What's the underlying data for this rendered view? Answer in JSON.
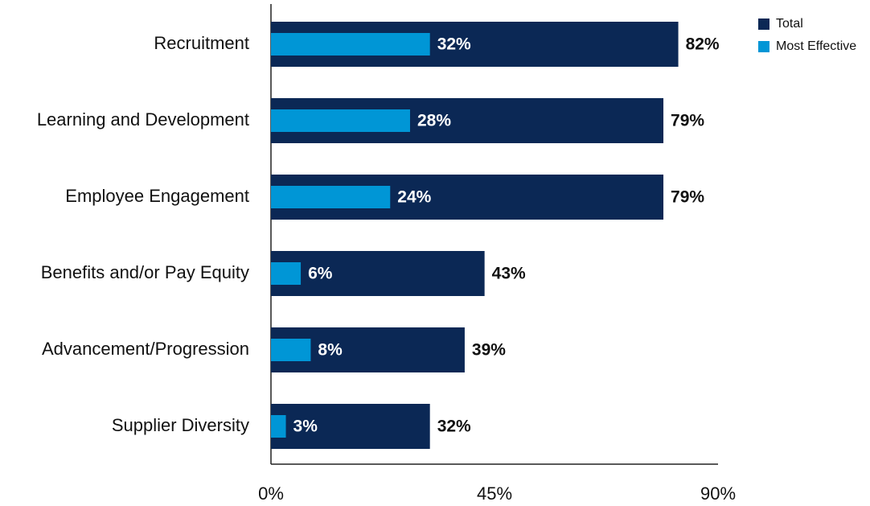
{
  "chart_data": {
    "type": "bar",
    "categories": [
      "Recruitment",
      "Learning and Development",
      "Employee Engagement",
      "Benefits and/or Pay Equity",
      "Advancement/Progression",
      "Supplier Diversity"
    ],
    "series": [
      {
        "name": "Total",
        "color": "#0b2855",
        "values": [
          82,
          79,
          79,
          43,
          39,
          32
        ],
        "value_labels": [
          "82%",
          "79%",
          "79%",
          "43%",
          "39%",
          "32%"
        ]
      },
      {
        "name": "Most Effective",
        "color": "#0096d6",
        "values": [
          32,
          28,
          24,
          6,
          8,
          3
        ],
        "value_labels": [
          "32%",
          "28%",
          "24%",
          "6%",
          "8%",
          "3%"
        ]
      }
    ],
    "xlim": [
      0,
      90
    ],
    "xticks": [
      {
        "value": 0,
        "label": "0%"
      },
      {
        "value": 45,
        "label": "45%"
      },
      {
        "value": 90,
        "label": "90%"
      }
    ]
  }
}
